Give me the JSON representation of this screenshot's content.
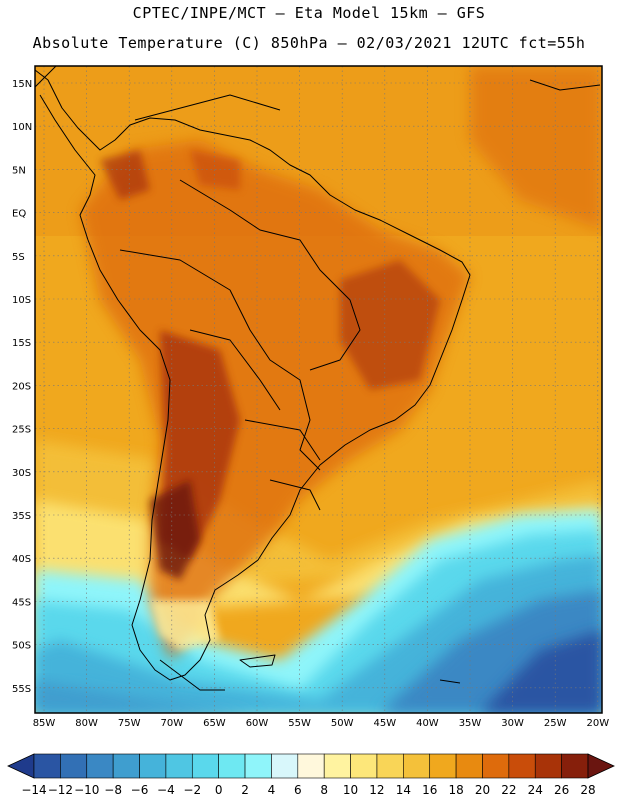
{
  "header": {
    "title_line1": "CPTEC/INPE/MCT –  Eta Model 15km – GFS",
    "title_line2": "Absolute Temperature (C) 850hPa – 02/03/2021 12UTC fct=55h"
  },
  "map": {
    "lat_labels": [
      "15N",
      "10N",
      "5N",
      "EQ",
      "5S",
      "10S",
      "15S",
      "20S",
      "25S",
      "30S",
      "35S",
      "40S",
      "45S",
      "50S",
      "55S"
    ],
    "lon_labels": [
      "85W",
      "80W",
      "75W",
      "70W",
      "65W",
      "60W",
      "55W",
      "50W",
      "45W",
      "40W",
      "35W",
      "30W",
      "25W",
      "20W"
    ]
  },
  "colorbar": {
    "labels": [
      "−14",
      "−12",
      "−10",
      "−8",
      "−6",
      "−4",
      "−2",
      "0",
      "2",
      "4",
      "6",
      "8",
      "10",
      "12",
      "14",
      "16",
      "18",
      "20",
      "22",
      "24",
      "26",
      "28"
    ],
    "colors": [
      "#1f3b8c",
      "#2a55a3",
      "#3270b5",
      "#3a88c4",
      "#3f9ecf",
      "#45b3da",
      "#4fc6e3",
      "#5ad8ec",
      "#6ee8f2",
      "#8ff5fa",
      "#d8f7fb",
      "#fff8dc",
      "#fff3a0",
      "#fde77a",
      "#f9d557",
      "#f4c13a",
      "#f0a81e",
      "#e88a10",
      "#de6b0c",
      "#c94d0a",
      "#a83308",
      "#861f0b",
      "#6a1510"
    ]
  }
}
